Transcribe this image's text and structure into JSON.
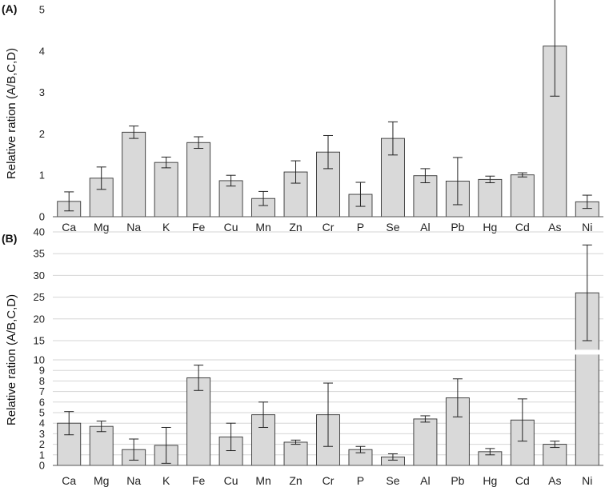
{
  "chart_data": [
    {
      "type": "bar",
      "panel_label": "(A)",
      "ylabel": "Relative ration (A/B,C,D)",
      "categories": [
        "Ca",
        "Mg",
        "Na",
        "K",
        "Fe",
        "Cu",
        "Mn",
        "Zn",
        "Cr",
        "P",
        "Se",
        "Al",
        "Pb",
        "Hg",
        "Cd",
        "As",
        "Ni"
      ],
      "values": [
        0.37,
        0.93,
        2.04,
        1.31,
        1.79,
        0.87,
        0.44,
        1.08,
        1.56,
        0.54,
        1.89,
        0.99,
        0.86,
        0.9,
        1.01,
        4.12,
        0.36
      ],
      "errors": [
        0.23,
        0.27,
        0.15,
        0.13,
        0.14,
        0.13,
        0.17,
        0.27,
        0.4,
        0.29,
        0.4,
        0.17,
        0.57,
        0.08,
        0.05,
        1.21,
        0.16
      ],
      "ylim": [
        0,
        5
      ],
      "yticks": [
        0,
        1,
        2,
        3,
        4,
        5
      ],
      "grid": false,
      "bar_color": "#d9d9d9"
    },
    {
      "type": "bar",
      "panel_label": "(B)",
      "ylabel": "Relative ration (A/B,C,D)",
      "categories": [
        "Ca",
        "Mg",
        "Na",
        "K",
        "Fe",
        "Cu",
        "Mn",
        "Zn",
        "Cr",
        "P",
        "Se",
        "Al",
        "Pb",
        "Hg",
        "Cd",
        "As",
        "Ni"
      ],
      "values": [
        4.0,
        3.7,
        1.5,
        1.9,
        8.3,
        2.7,
        4.8,
        2.2,
        4.8,
        1.5,
        0.8,
        4.4,
        6.4,
        1.3,
        4.3,
        2.0,
        26.0
      ],
      "errors": [
        1.1,
        0.5,
        1.0,
        1.7,
        1.2,
        1.3,
        1.2,
        0.2,
        3.0,
        0.3,
        0.3,
        0.3,
        1.8,
        0.3,
        2.0,
        0.3,
        11.0
      ],
      "ylim": [
        0,
        40
      ],
      "axis_break": [
        10,
        15
      ],
      "yticks": [
        0,
        1,
        2,
        3,
        4,
        5,
        6,
        7,
        8,
        9,
        10,
        15,
        20,
        25,
        30,
        35,
        40
      ],
      "yticklabels": [
        "0",
        "1",
        "2",
        "3",
        "4",
        "5",
        "6",
        "7",
        "8",
        "9",
        "10",
        "15",
        "20",
        "25",
        "30",
        "35",
        "40"
      ],
      "grid": true,
      "bar_color": "#d9d9d9"
    }
  ]
}
